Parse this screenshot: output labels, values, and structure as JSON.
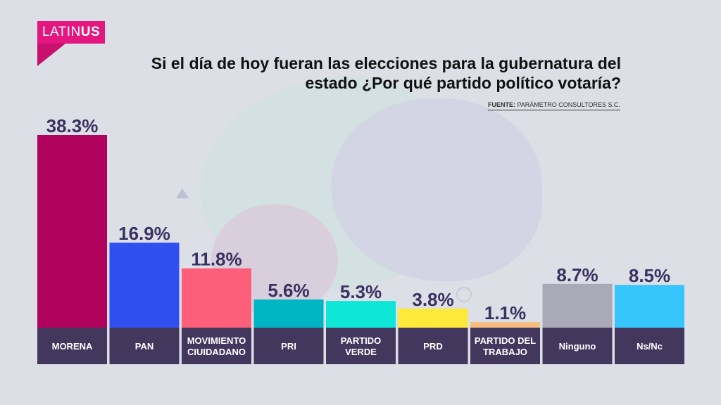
{
  "logo": {
    "light": "LATIN",
    "bold": "US"
  },
  "title_line1": "Si el día de hoy fueran las elecciones para la gubernatura del",
  "title_line2": "estado ¿Por qué partido político votaría?",
  "source": {
    "label": "FUENTE:",
    "text": "PARÁMETRO CONSULTORES S.C."
  },
  "chart_data": {
    "type": "bar",
    "title": "Si el día de hoy fueran las elecciones para la gubernatura del estado ¿Por qué partido político votaría?",
    "categories": [
      [
        "MORENA"
      ],
      [
        "PAN"
      ],
      [
        "MOVIMIENTO",
        "CIUIDADANO"
      ],
      [
        "PRI"
      ],
      [
        "PARTIDO",
        "VERDE"
      ],
      [
        "PRD"
      ],
      [
        "PARTIDO DEL",
        "TRABAJO"
      ],
      [
        "Ninguno"
      ],
      [
        "Ns/Nc"
      ]
    ],
    "values": [
      38.3,
      16.9,
      11.8,
      5.6,
      5.3,
      3.8,
      1.1,
      8.7,
      8.5
    ],
    "value_labels": [
      "38.3%",
      "16.9%",
      "11.8%",
      "5.6%",
      "5.3%",
      "3.8%",
      "1.1%",
      "8.7%",
      "8.5%"
    ],
    "colors": [
      "#b0035e",
      "#2f50ee",
      "#fd5e7a",
      "#00b5c3",
      "#0ee6d7",
      "#fde93a",
      "#f6bd7e",
      "#a9a9b7",
      "#36c6fb"
    ],
    "label_bg": "#44375e",
    "ylim": [
      0,
      38.3
    ],
    "grid": false,
    "legend": "none"
  }
}
